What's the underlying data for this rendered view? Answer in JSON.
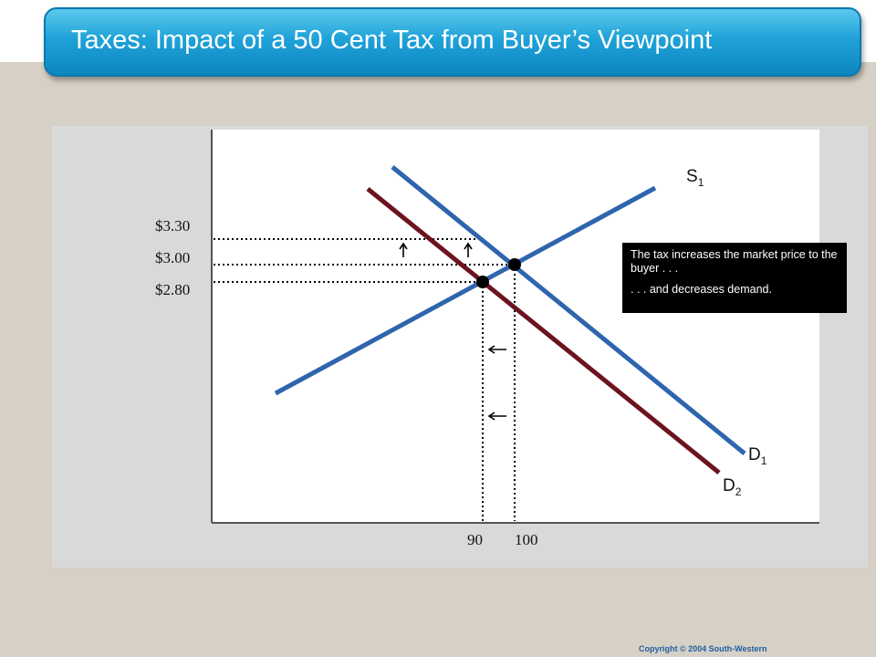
{
  "slide": {
    "title": "Taxes: Impact of a 50 Cent Tax from Buyer’s Viewpoint",
    "copyright": "Copyright © 2004  South-Western"
  },
  "diagram": {
    "price_labels": [
      "$3.30",
      "$3.00",
      "$2.80"
    ],
    "quantity_labels": [
      "90",
      "100"
    ],
    "curve_labels": {
      "supply": [
        "S",
        "1"
      ],
      "demand_original": [
        "D",
        "1"
      ],
      "demand_new": [
        "D",
        "2"
      ]
    },
    "callout": {
      "line1": "The tax increases the market price to the buyer . . .",
      "line2": ". . . and decreases demand."
    },
    "colors": {
      "supply": "#2e65ad",
      "demand_original": "#2e65ad",
      "demand_new": "#6b1420",
      "title_bar": "#1fa2d8",
      "guides": "#000000"
    }
  }
}
